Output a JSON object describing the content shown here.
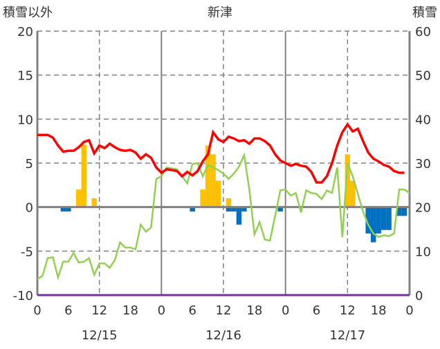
{
  "chart_data": {
    "type": "bar+line",
    "title": "新津",
    "left_axis_label": "積雪以外",
    "right_axis_label": "積雪",
    "left_ylim": [
      -10,
      20
    ],
    "left_ticks": [
      20,
      15,
      10,
      5,
      0,
      -5,
      -10
    ],
    "right_ylim": [
      0,
      60
    ],
    "right_ticks": [
      60,
      50,
      40,
      30,
      20,
      10,
      0
    ],
    "x_range_hours": [
      0,
      72
    ],
    "x_tick_labels": [
      "0",
      "6",
      "12",
      "18",
      "0",
      "6",
      "12",
      "18",
      "0",
      "6",
      "12",
      "18",
      "0"
    ],
    "date_labels": [
      "12/15",
      "12/16",
      "12/17"
    ],
    "colors": {
      "temperature": "#ff0000",
      "snow_depth": "#92d050",
      "precip": "#ffc000",
      "snow_decrease": "#0070c0",
      "baseline": "#7030a0",
      "grid": "#808080"
    },
    "temperature": [
      8.2,
      8.2,
      8.2,
      7.9,
      7.0,
      6.3,
      6.4,
      6.4,
      6.8,
      7.4,
      7.6,
      6.1,
      7.0,
      6.7,
      7.2,
      6.8,
      6.5,
      6.4,
      6.5,
      6.2,
      5.5,
      6.0,
      5.6,
      4.5,
      3.9,
      4.3,
      4.2,
      4.1,
      3.5,
      4.0,
      3.6,
      4.1,
      5.2,
      6.0,
      8.5,
      7.7,
      7.4,
      8.0,
      7.8,
      7.5,
      7.6,
      7.2,
      7.8,
      7.8,
      7.5,
      7.0,
      6.0,
      5.3,
      5.0,
      4.7,
      4.9,
      4.7,
      4.6,
      4.0,
      2.8,
      2.8,
      3.5,
      5.0,
      7.0,
      8.5,
      9.4,
      8.6,
      8.9,
      7.5,
      6.2,
      5.5,
      5.2,
      4.8,
      4.6,
      4.1,
      3.9,
      3.9
    ],
    "snow_depth_cm": [
      3.6,
      4.4,
      8.4,
      8.6,
      4.0,
      7.6,
      7.6,
      9.6,
      7.4,
      7.6,
      8.4,
      4.6,
      7.2,
      7.2,
      6.2,
      8.0,
      12.0,
      10.8,
      10.8,
      10.4,
      16.0,
      14.4,
      15.4,
      26.4,
      27.0,
      29.0,
      28.8,
      28.6,
      27.0,
      25.4,
      29.8,
      30.0,
      27.0,
      29.6,
      29.0,
      28.4,
      27.6,
      26.4,
      27.6,
      29.2,
      31.8,
      24.0,
      13.8,
      16.6,
      12.6,
      12.4,
      18.0,
      23.8,
      24.0,
      22.6,
      23.2,
      18.8,
      23.8,
      23.2,
      23.0,
      21.8,
      23.8,
      23.2,
      29.0,
      13.2,
      30.0,
      27.0,
      23.0,
      19.0,
      16.0,
      14.0,
      13.2,
      13.6,
      13.4,
      14.0,
      24.0,
      24.0,
      23.2
    ],
    "precip_bars": [
      {
        "hour": 8,
        "value": 2
      },
      {
        "hour": 9,
        "value": 7.1
      },
      {
        "hour": 11,
        "value": 1
      },
      {
        "hour": 32,
        "value": 2
      },
      {
        "hour": 33,
        "value": 7
      },
      {
        "hour": 34,
        "value": 6
      },
      {
        "hour": 35,
        "value": 3
      },
      {
        "hour": 37,
        "value": 1
      },
      {
        "hour": 60,
        "value": 6
      },
      {
        "hour": 61,
        "value": 3
      }
    ],
    "decrease_bars": [
      {
        "hour": 5,
        "value": -0.5
      },
      {
        "hour": 6,
        "value": -0.5
      },
      {
        "hour": 30,
        "value": -0.5
      },
      {
        "hour": 37,
        "value": -0.5
      },
      {
        "hour": 38,
        "value": -0.5
      },
      {
        "hour": 39,
        "value": -2
      },
      {
        "hour": 40,
        "value": -0.5
      },
      {
        "hour": 47,
        "value": -0.5
      },
      {
        "hour": 64,
        "value": -3
      },
      {
        "hour": 65,
        "value": -4
      },
      {
        "hour": 66,
        "value": -3
      },
      {
        "hour": 67,
        "value": -2.6
      },
      {
        "hour": 68,
        "value": -2.6
      },
      {
        "hour": 70,
        "value": -1
      },
      {
        "hour": 71,
        "value": -1
      }
    ]
  }
}
